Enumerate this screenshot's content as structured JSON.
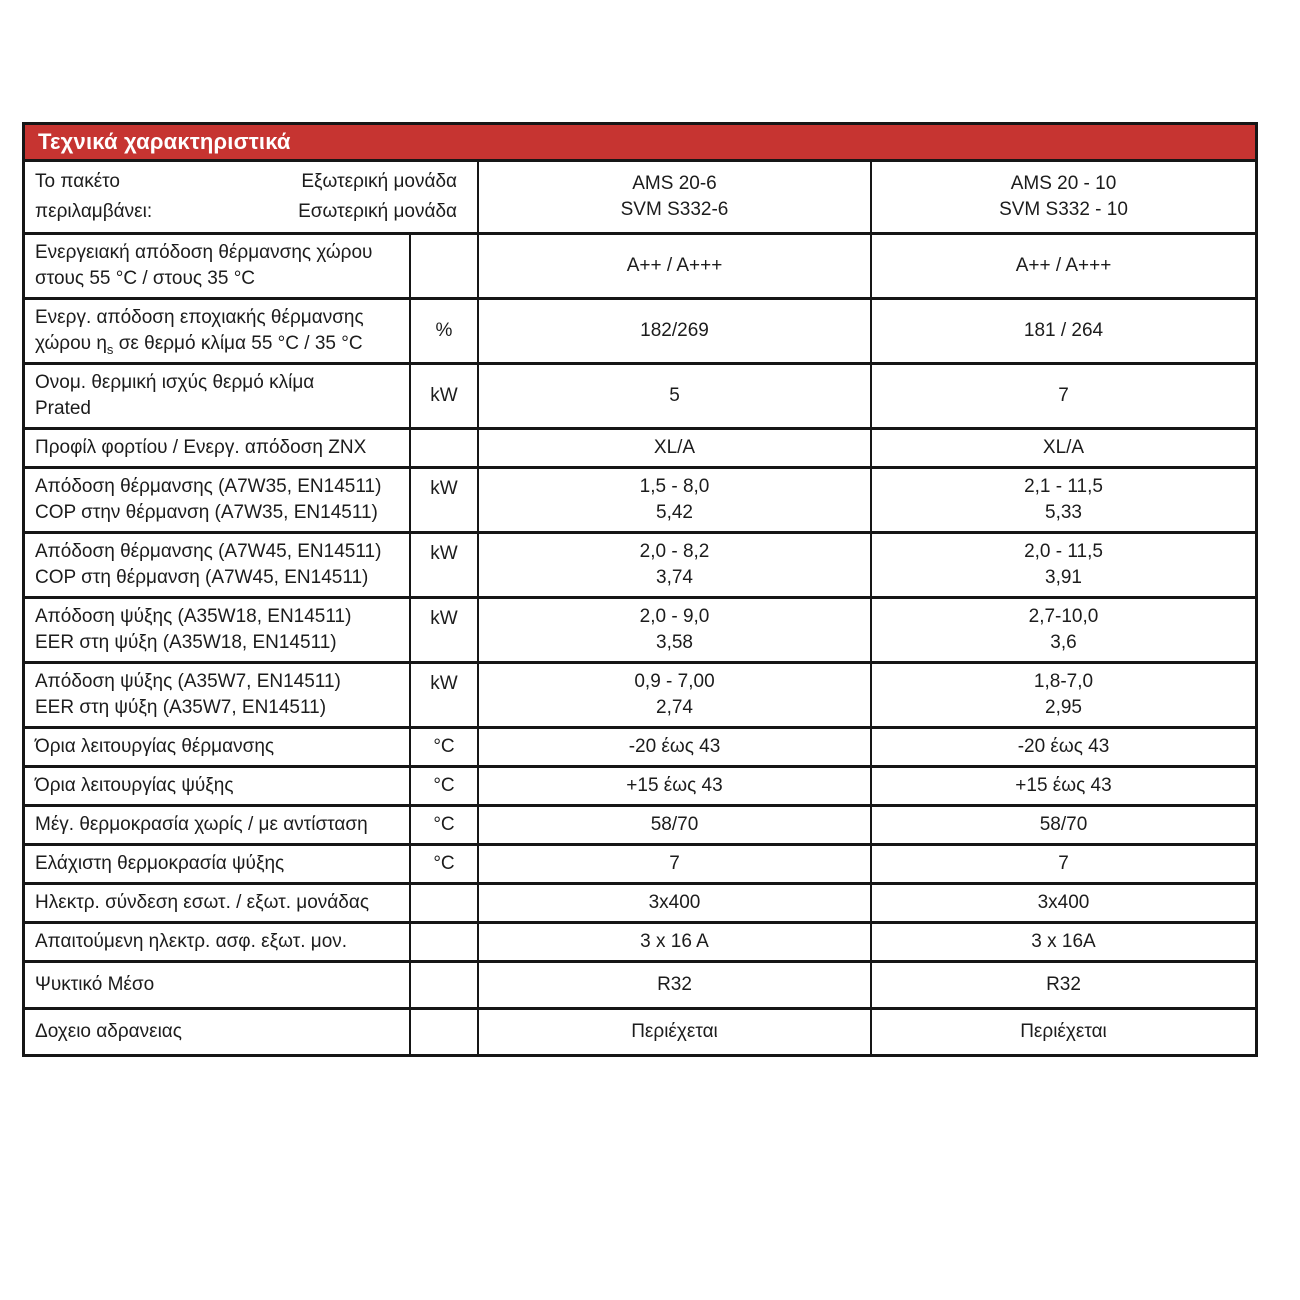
{
  "header": {
    "title": "Τεχνικά χαρακτηριστικά",
    "accent_color": "#c63431",
    "border_color": "#161616"
  },
  "package_row": {
    "label_line1": "Το πακέτο",
    "label_line2": "περιλαμβάνει:",
    "sublabel_line1": "Εξωτερική μονάδα",
    "sublabel_line2": "Εσωτερική μονάδα",
    "col1": [
      "AMS 20-6",
      "SVM S332-6"
    ],
    "col2": [
      "AMS 20 - 10",
      "SVM S332 - 10"
    ]
  },
  "rows": [
    {
      "label": [
        "Ενεργειακή απόδοση θέρμανσης χώρου",
        "στους 55 °C / στους 35 °C"
      ],
      "unit": "",
      "col1": [
        "A++ / A+++"
      ],
      "col2": [
        "A++ / A+++"
      ]
    },
    {
      "label": [
        "Ενεργ. απόδοση εποχιακής θέρμανσης",
        {
          "pre": "χώρου η",
          "sub": "s",
          "post": " σε θερμό κλίμα 55 °C / 35 °C"
        }
      ],
      "unit": "%",
      "col1": [
        "182/269"
      ],
      "col2": [
        "181 / 264"
      ]
    },
    {
      "label": [
        "Ονομ. θερμική ισχύς θερμό κλίμα",
        "Prated"
      ],
      "unit": "kW",
      "col1": [
        "5"
      ],
      "col2": [
        "7"
      ]
    },
    {
      "label": [
        "Προφίλ φορτίου / Ενεργ. απόδοση ΖΝΧ"
      ],
      "unit": "",
      "col1": [
        "XL/A"
      ],
      "col2": [
        "XL/A"
      ]
    },
    {
      "label": [
        "Απόδοση θέρμανσης (A7W35, EN14511)",
        "COP στην θέρμανση (A7W35, EN14511)"
      ],
      "unit": "kW",
      "col1": [
        "1,5 - 8,0",
        "5,42"
      ],
      "col2": [
        "2,1 - 11,5",
        "5,33"
      ]
    },
    {
      "label": [
        "Απόδοση θέρμανσης (A7W45, EN14511)",
        "COP στη θέρμανση (A7W45, EN14511)"
      ],
      "unit": "kW",
      "col1": [
        "2,0 - 8,2",
        "3,74"
      ],
      "col2": [
        "2,0 - 11,5",
        "3,91"
      ]
    },
    {
      "label": [
        "Απόδοση ψύξης (A35W18, EN14511)",
        "EER στη ψύξη (A35W18, EN14511)"
      ],
      "unit": "kW",
      "col1": [
        "2,0 - 9,0",
        "3,58"
      ],
      "col2": [
        "2,7-10,0",
        "3,6"
      ]
    },
    {
      "label": [
        "Απόδοση ψύξης (A35W7, EN14511)",
        "EER στη ψύξη (A35W7, EN14511)"
      ],
      "unit": "kW",
      "col1": [
        "0,9 - 7,00",
        "2,74"
      ],
      "col2": [
        "1,8-7,0",
        "2,95"
      ]
    },
    {
      "label": [
        "Όρια λειτουργίας θέρμανσης"
      ],
      "unit": "°C",
      "col1": [
        "-20 έως 43"
      ],
      "col2": [
        "-20 έως 43"
      ]
    },
    {
      "label": [
        "Όρια λειτουργίας ψύξης"
      ],
      "unit": "°C",
      "col1": [
        "+15 έως 43"
      ],
      "col2": [
        "+15 έως 43"
      ]
    },
    {
      "label": [
        "Μέγ. θερμοκρασία χωρίς / με αντίσταση"
      ],
      "unit": "°C",
      "col1": [
        "58/70"
      ],
      "col2": [
        "58/70"
      ]
    },
    {
      "label": [
        "Ελάχιστη θερμοκρασία ψύξης"
      ],
      "unit": "°C",
      "col1": [
        "7"
      ],
      "col2": [
        "7"
      ]
    },
    {
      "label": [
        "Ηλεκτρ. σύνδεση εσωτ. / εξωτ. μονάδας"
      ],
      "unit": "",
      "col1": [
        "3x400"
      ],
      "col2": [
        "3x400"
      ]
    },
    {
      "label": [
        "Απαιτούμενη ηλεκτρ. ασφ.  εξωτ. μον."
      ],
      "unit": "",
      "col1": [
        "3 x 16 A"
      ],
      "col2": [
        "3 x 16A"
      ]
    },
    {
      "label": [
        "Ψυκτικό Μέσο"
      ],
      "unit": "",
      "col1": [
        "R32"
      ],
      "col2": [
        "R32"
      ]
    },
    {
      "label": [
        "Δοχειο αδρανειας"
      ],
      "unit": "",
      "col1": [
        "Περιέχεται"
      ],
      "col2": [
        "Περιέχεται"
      ]
    }
  ]
}
